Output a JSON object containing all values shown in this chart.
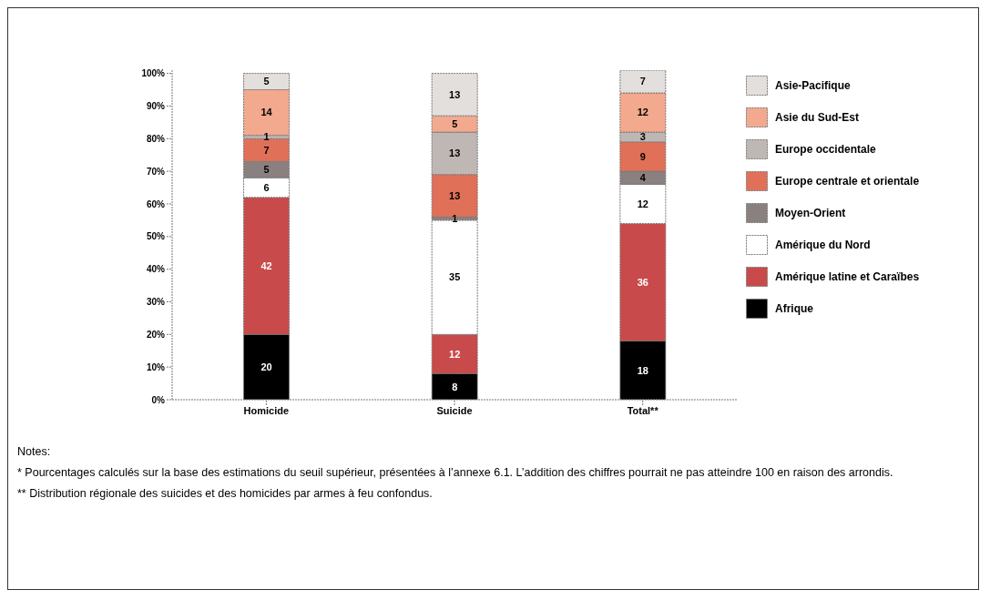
{
  "chart_data": {
    "type": "bar",
    "stacked": true,
    "categories": [
      "Homicide",
      "Suicide",
      "Total**"
    ],
    "series": [
      {
        "name": "Afrique",
        "color": "#000000",
        "values": [
          20,
          8,
          18
        ]
      },
      {
        "name": "Amérique latine et Caraïbes",
        "color": "#c94a4a",
        "values": [
          42,
          12,
          36
        ]
      },
      {
        "name": "Amérique du Nord",
        "color": "#ffffff",
        "values": [
          6,
          35,
          12
        ]
      },
      {
        "name": "Moyen-Orient",
        "color": "#8a8080",
        "values": [
          5,
          1,
          4
        ]
      },
      {
        "name": "Europe centrale et orientale",
        "color": "#e07058",
        "values": [
          7,
          13,
          9
        ]
      },
      {
        "name": "Europe occidentale",
        "color": "#bfb7b4",
        "values": [
          1,
          13,
          3
        ]
      },
      {
        "name": "Asie du Sud-Est",
        "color": "#f2a98e",
        "values": [
          14,
          5,
          12
        ]
      },
      {
        "name": "Asie-Pacifique",
        "color": "#e3dfdd",
        "values": [
          5,
          13,
          7
        ]
      }
    ],
    "ylim": [
      0,
      101
    ],
    "yticks": [
      {
        "value": 0,
        "label": "0%"
      },
      {
        "value": 10,
        "label": "10%"
      },
      {
        "value": 20,
        "label": "20%"
      },
      {
        "value": 30,
        "label": "30%"
      },
      {
        "value": 40,
        "label": "40%"
      },
      {
        "value": 50,
        "label": "50%"
      },
      {
        "value": 60,
        "label": "60%"
      },
      {
        "value": 70,
        "label": "70%"
      },
      {
        "value": 80,
        "label": "80%"
      },
      {
        "value": 90,
        "label": "90%"
      },
      {
        "value": 100,
        "label": "100%"
      }
    ],
    "data_labels": true,
    "grid": false,
    "legend": "right",
    "annotations": [
      "Notes:",
      "* Pourcentages calculés sur la base des estimations du seuil supérieur, présentées à l’annexe  6.1. L’addition des chiffres pourrait ne pas atteindre 100 en raison des arrondis.",
      "** Distribution régionale des suicides et des homicides par armes à feu confondus."
    ]
  }
}
